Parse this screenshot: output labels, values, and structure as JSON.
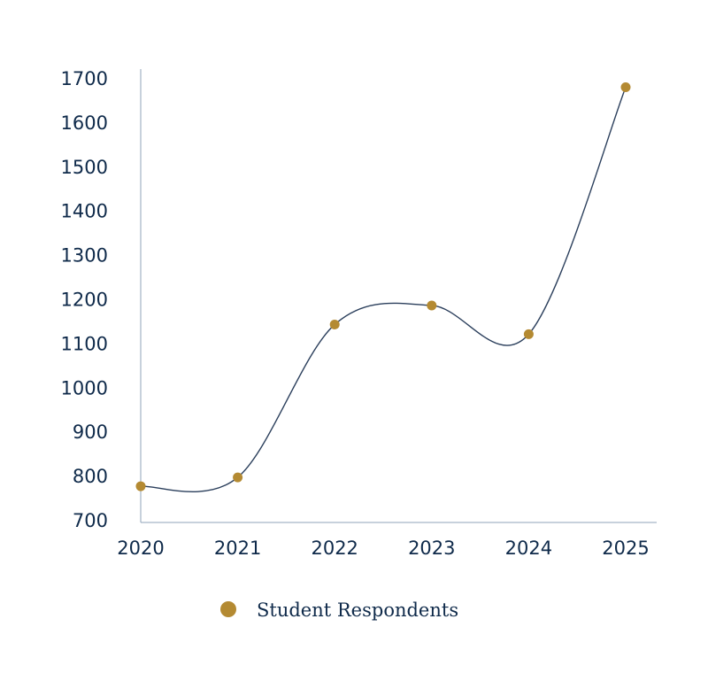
{
  "chart_data": {
    "type": "line",
    "x": [
      "2020",
      "2021",
      "2022",
      "2023",
      "2024",
      "2025"
    ],
    "series": [
      {
        "name": "Student Respondents",
        "values": [
          776,
          796,
          1142,
          1185,
          1120,
          1679
        ]
      }
    ],
    "ylim": [
      700,
      1700
    ],
    "yticks": [
      "700",
      "800",
      "900",
      "1000",
      "1100",
      "1200",
      "1300",
      "1400",
      "1500",
      "1600",
      "1700"
    ],
    "grid": false,
    "legend_position": "bottom-center",
    "smooth": true
  },
  "colors": {
    "line": "#2b3f5c",
    "marker": "#b48a32",
    "axis": "#8fa3b8",
    "text": "#0f2a4a"
  }
}
